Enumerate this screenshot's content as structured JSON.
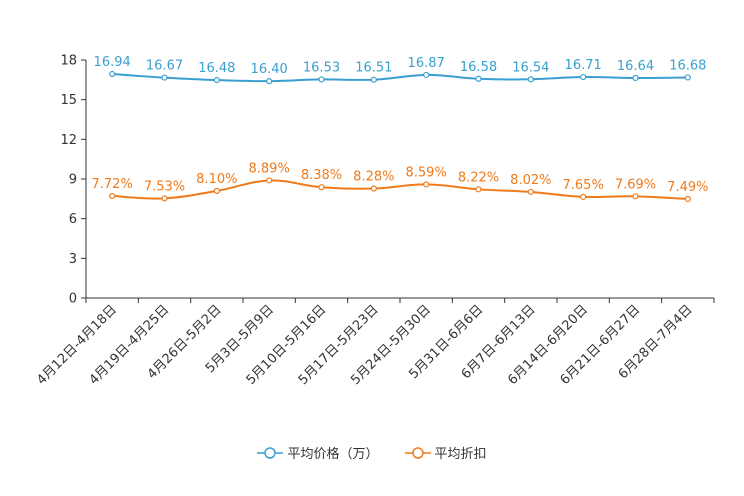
{
  "chart_data": {
    "type": "line",
    "title": "",
    "xlabel": "",
    "ylabel": "",
    "ylim": [
      0,
      18
    ],
    "yticks": [
      "0",
      "3",
      "6",
      "9",
      "12",
      "15",
      "18"
    ],
    "grid": false,
    "legend_position": "bottom-center",
    "categories": [
      "4月12日-4月18日",
      "4月19日-4月25日",
      "4月26日-5月2日",
      "5月3日-5月9日",
      "5月10日-5月16日",
      "5月17日-5月23日",
      "5月24日-5月30日",
      "5月31日-6月6日",
      "6月7日-6月13日",
      "6月14日-6月20日",
      "6月21日-6月27日",
      "6月28日-7月4日"
    ],
    "series": [
      {
        "name": "平均价格（万）",
        "color": "#3a9fd0",
        "values": [
          16.94,
          16.67,
          16.48,
          16.4,
          16.53,
          16.51,
          16.87,
          16.58,
          16.54,
          16.71,
          16.64,
          16.68
        ],
        "labels": [
          "16.94",
          "16.67",
          "16.48",
          "16.40",
          "16.53",
          "16.51",
          "16.87",
          "16.58",
          "16.54",
          "16.71",
          "16.64",
          "16.68"
        ]
      },
      {
        "name": "平均折扣",
        "color": "#f07a1a",
        "values": [
          7.72,
          7.53,
          8.1,
          8.89,
          8.38,
          8.28,
          8.59,
          8.22,
          8.02,
          7.65,
          7.69,
          7.49
        ],
        "labels": [
          "7.72%",
          "7.53%",
          "8.10%",
          "8.89%",
          "8.38%",
          "8.28%",
          "8.59%",
          "8.22%",
          "8.02%",
          "7.65%",
          "7.69%",
          "7.49%"
        ]
      }
    ]
  }
}
